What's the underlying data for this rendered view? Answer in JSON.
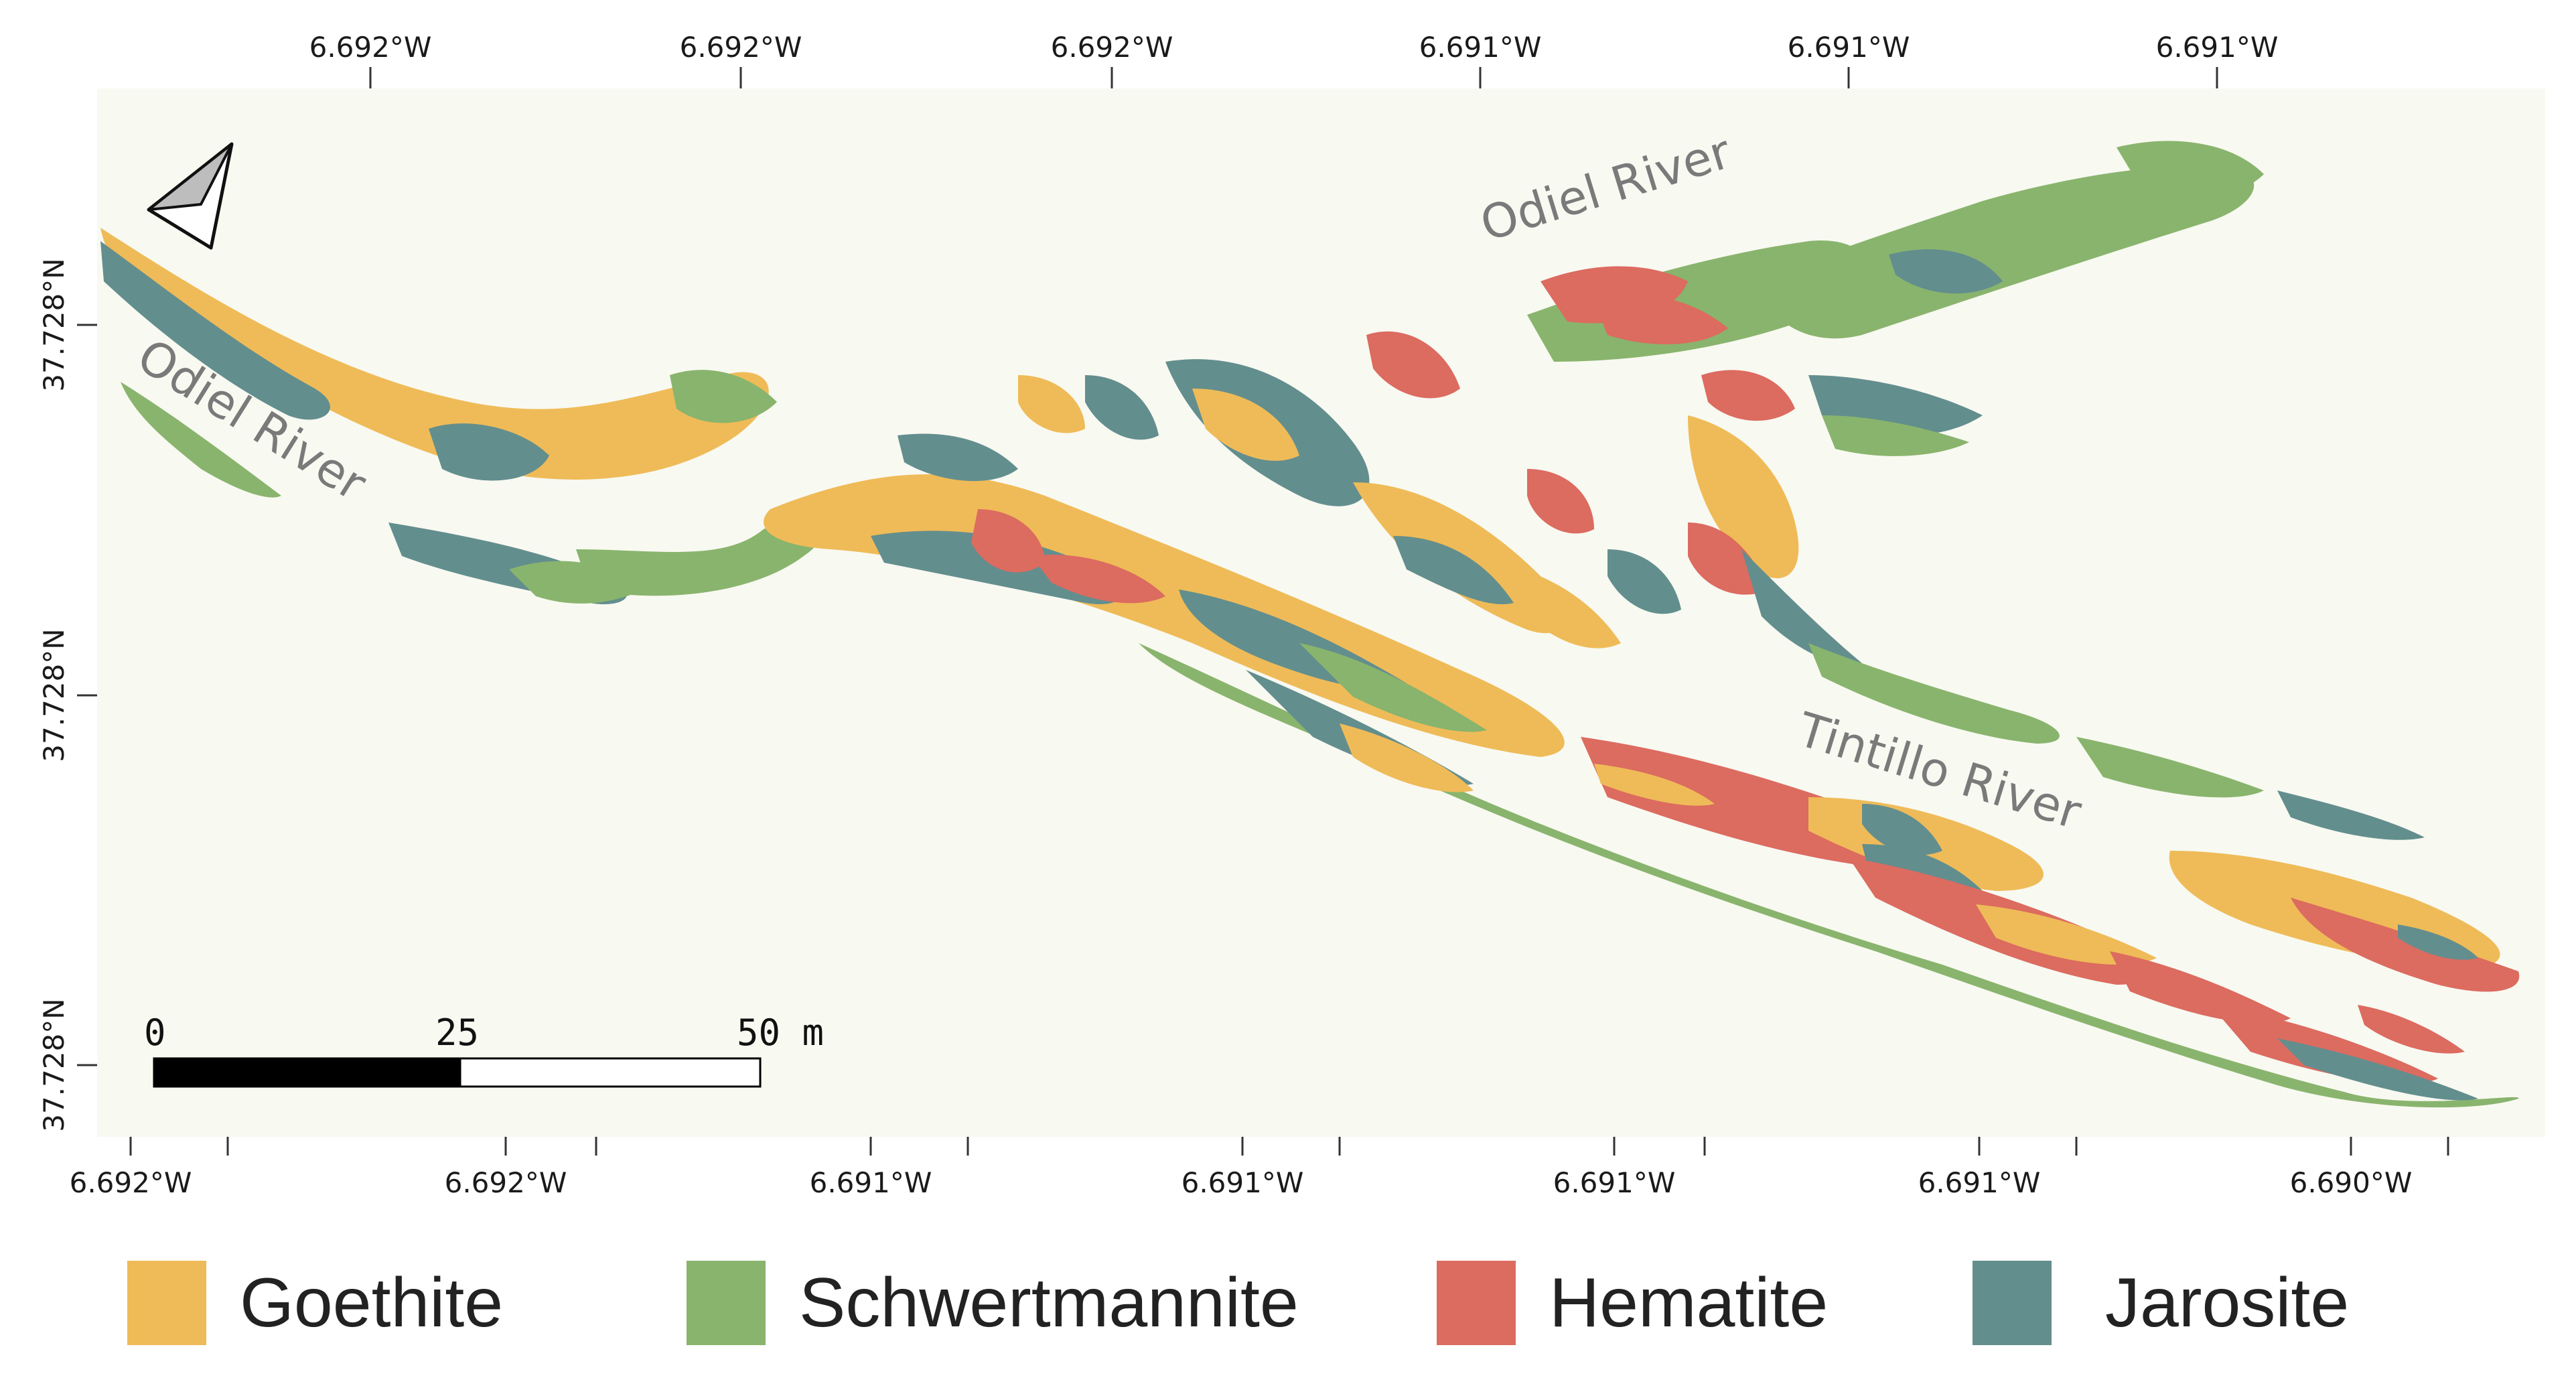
{
  "map": {
    "top_ticks": [
      "6.692°W",
      "6.692°W",
      "6.692°W",
      "6.691°W",
      "6.691°W",
      "6.691°W"
    ],
    "bottom_ticks": [
      "6.692°W",
      "6.692°W",
      "6.691°W",
      "6.691°W",
      "6.691°W",
      "6.691°W",
      "6.690°W"
    ],
    "left_ticks": [
      "37.728°N",
      "37.728°N",
      "37.728°N"
    ],
    "rivers": {
      "odiel_upper": "Odiel River",
      "odiel_left": "Odiel River",
      "tintillo": "Tintillo River"
    },
    "north_arrow": "north-arrow-icon",
    "scale_bar": {
      "labels": [
        "0",
        "25",
        "50 m"
      ]
    },
    "background_color": "#f8f9f1"
  },
  "legend": {
    "items": [
      {
        "label": "Goethite",
        "color": "#efbb58"
      },
      {
        "label": "Schwertmannite",
        "color": "#89b46d"
      },
      {
        "label": "Hematite",
        "color": "#dc6b60"
      },
      {
        "label": "Jarosite",
        "color": "#638e8e"
      }
    ]
  }
}
